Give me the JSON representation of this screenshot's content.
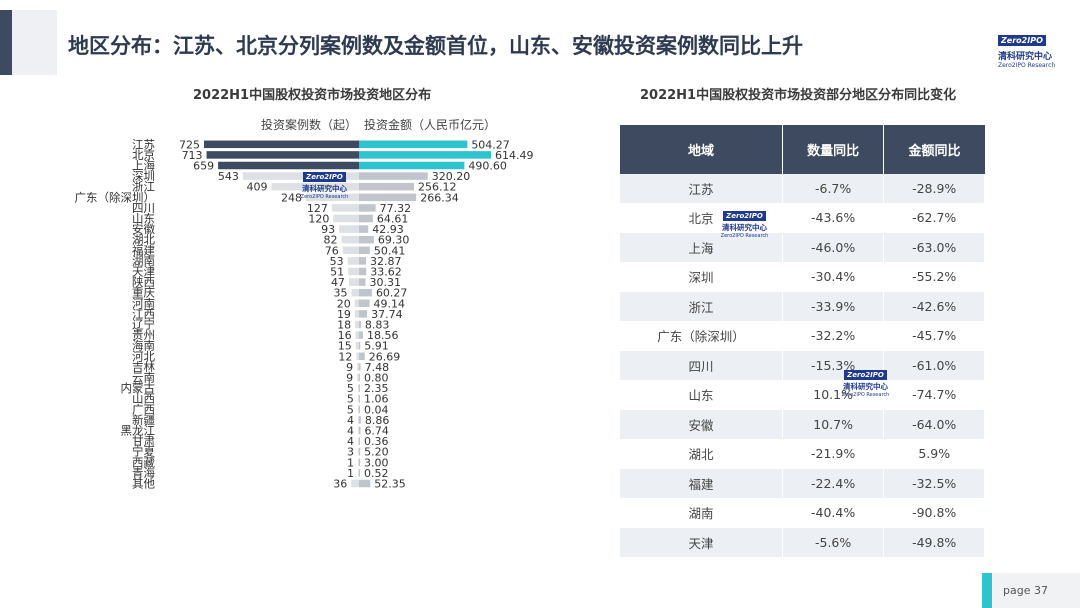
{
  "title": "地区分布：江苏、北京分列案例数及金额首位，山东、安徽投资案例数同比上升",
  "logo": {
    "box": "Zero2IPO",
    "cn": "清科研究中心",
    "en": "Zero2IPO Research"
  },
  "left_subtitle": "2022H1中国股权投资市场投资地区分布",
  "right_subtitle": "2022H1中国股权投资市场投资部分地区分布同比变化",
  "legend": {
    "cases": "投资案例数（起）",
    "amount": "投资金额（人民币亿元）"
  },
  "colors": {
    "dark_bar": "#3e4a5f",
    "cyan_bar": "#2bc4cf",
    "gray_dark": "#c0c5cc",
    "gray_light": "#dde1e6",
    "header": "#3e4a5f"
  },
  "chart_data": {
    "type": "bar",
    "title": "2022H1中国股权投资市场投资地区分布",
    "categories": [
      "江苏",
      "北京",
      "上海",
      "深圳",
      "浙江",
      "广东（除深圳）",
      "四川",
      "山东",
      "安徽",
      "湖北",
      "福建",
      "湖南",
      "天津",
      "陕西",
      "重庆",
      "河南",
      "江西",
      "辽宁",
      "贵州",
      "海南",
      "河北",
      "吉林",
      "云南",
      "内蒙古",
      "山西",
      "广西",
      "新疆",
      "黑龙江",
      "甘肃",
      "宁夏",
      "西藏",
      "青海",
      "其他"
    ],
    "series": [
      {
        "name": "投资案例数（起）",
        "values": [
          725,
          713,
          659,
          543,
          409,
          248,
          127,
          120,
          93,
          82,
          76,
          53,
          51,
          47,
          35,
          20,
          19,
          18,
          16,
          15,
          12,
          9,
          9,
          5,
          5,
          5,
          4,
          4,
          4,
          3,
          1,
          1,
          36
        ]
      },
      {
        "name": "投资金额（人民币亿元）",
        "values": [
          504.27,
          614.49,
          490.6,
          320.2,
          256.12,
          266.34,
          77.32,
          64.61,
          42.93,
          69.3,
          50.41,
          32.87,
          33.62,
          30.31,
          60.27,
          49.14,
          37.74,
          8.83,
          18.56,
          5.91,
          26.69,
          7.48,
          0.8,
          2.35,
          1.06,
          0.04,
          8.86,
          6.74,
          0.36,
          5.2,
          3.0,
          0.52,
          52.35
        ]
      }
    ],
    "amount_labels": [
      "504.27",
      "614.49",
      "490.60",
      "320.20",
      "256.12",
      "266.34",
      "77.32",
      "64.61",
      "42.93",
      "69.30",
      "50.41",
      "32.87",
      "33.62",
      "30.31",
      "60.27",
      "49.14",
      "37.74",
      "8.83",
      "18.56",
      "5.91",
      "26.69",
      "7.48",
      "0.80",
      "2.35",
      "1.06",
      "0.04",
      "8.86",
      "6.74",
      "0.36",
      "5.20",
      "3.00",
      "0.52",
      "52.35"
    ]
  },
  "table": {
    "headers": [
      "地域",
      "数量同比",
      "金额同比"
    ],
    "rows": [
      [
        "江苏",
        "-6.7%",
        "-28.9%"
      ],
      [
        "北京",
        "-43.6%",
        "-62.7%"
      ],
      [
        "上海",
        "-46.0%",
        "-63.0%"
      ],
      [
        "深圳",
        "-30.4%",
        "-55.2%"
      ],
      [
        "浙江",
        "-33.9%",
        "-42.6%"
      ],
      [
        "广东（除深圳）",
        "-32.2%",
        "-45.7%"
      ],
      [
        "四川",
        "-15.3%",
        "-61.0%"
      ],
      [
        "山东",
        "10.1%",
        "-74.7%"
      ],
      [
        "安徽",
        "10.7%",
        "-64.0%"
      ],
      [
        "湖北",
        "-21.9%",
        "5.9%"
      ],
      [
        "福建",
        "-22.4%",
        "-32.5%"
      ],
      [
        "湖南",
        "-40.4%",
        "-90.8%"
      ],
      [
        "天津",
        "-5.6%",
        "-49.8%"
      ]
    ]
  },
  "page": "page 37"
}
